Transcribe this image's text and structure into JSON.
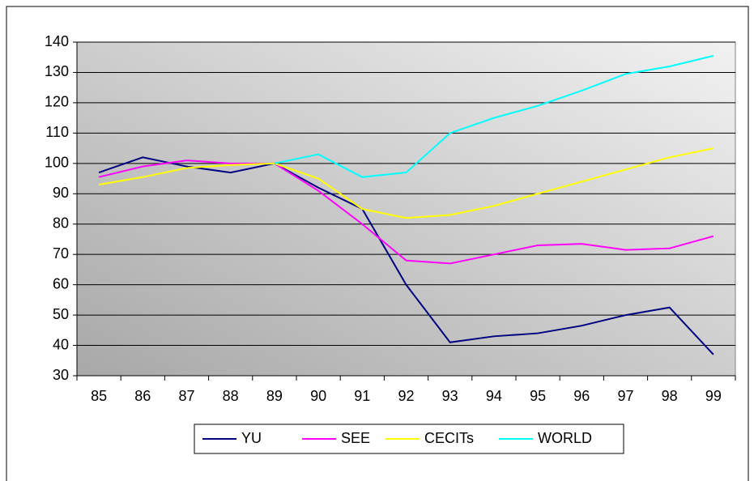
{
  "chart_data": {
    "type": "line",
    "categories": [
      "85",
      "86",
      "87",
      "88",
      "89",
      "90",
      "91",
      "92",
      "93",
      "94",
      "95",
      "96",
      "97",
      "98",
      "99"
    ],
    "series": [
      {
        "name": "YU",
        "color": "#000080",
        "values": [
          97,
          102,
          99,
          97,
          100,
          92,
          85,
          60,
          41,
          43,
          44,
          46.5,
          50,
          52.5,
          37
        ]
      },
      {
        "name": "SEE",
        "color": "#ff00ff",
        "values": [
          95.5,
          99,
          101,
          100,
          100,
          91,
          80,
          68,
          67,
          70,
          73,
          73.5,
          71.5,
          72,
          76
        ]
      },
      {
        "name": "CECITs",
        "color": "#ffff00",
        "values": [
          93,
          95.5,
          98.5,
          99.5,
          100,
          95,
          85,
          82,
          83,
          86,
          90,
          94,
          98,
          102,
          105
        ]
      },
      {
        "name": "WORLD",
        "color": "#00ffff",
        "values": [
          null,
          null,
          null,
          null,
          100,
          103,
          95.5,
          97,
          110,
          115,
          119,
          124,
          129.5,
          132,
          135.5
        ]
      }
    ],
    "ylim": [
      30,
      140
    ],
    "yticks": [
      30,
      40,
      50,
      60,
      70,
      80,
      90,
      100,
      110,
      120,
      130,
      140
    ],
    "grid": true,
    "legend": "bottom"
  }
}
